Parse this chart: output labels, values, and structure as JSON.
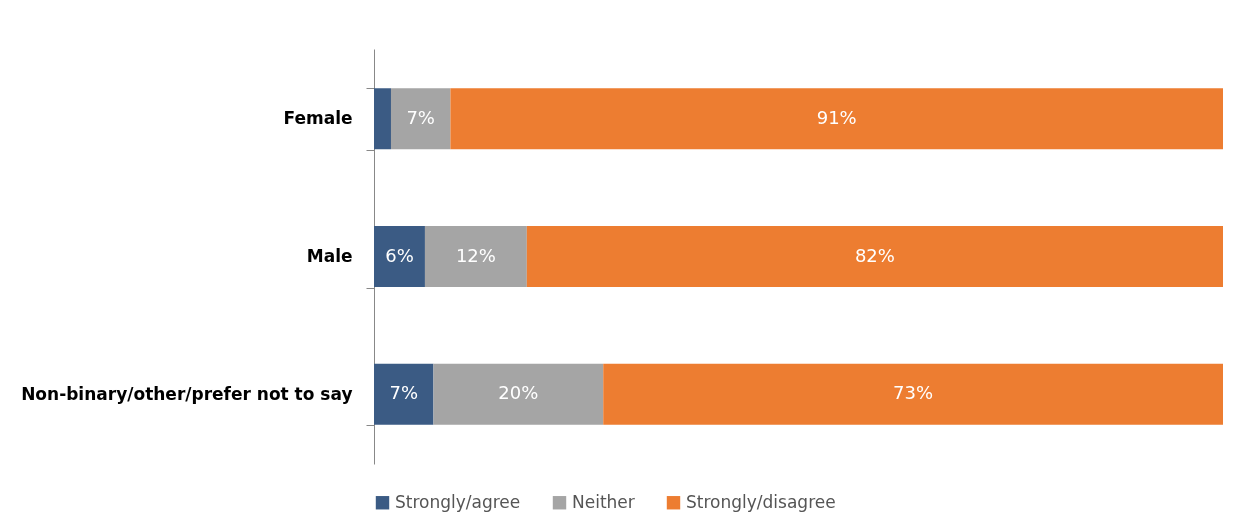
{
  "chart_data": {
    "type": "bar",
    "orientation": "horizontal",
    "stacked": true,
    "categories": [
      "Female",
      "Male",
      "Non-binary/other/prefer not to say"
    ],
    "series": [
      {
        "name": "Strongly/agree",
        "color": "#3b5b84",
        "values": [
          2,
          6,
          7
        ],
        "value_labels": [
          null,
          "6%",
          "7%"
        ]
      },
      {
        "name": "Neither",
        "color": "#a5a5a5",
        "values": [
          7,
          12,
          20
        ],
        "value_labels": [
          "7%",
          "12%",
          "20%"
        ]
      },
      {
        "name": "Strongly/disagree",
        "color": "#ed7d31",
        "values": [
          91,
          82,
          73
        ],
        "value_labels": [
          "91%",
          "82%",
          "73%"
        ]
      }
    ],
    "xlim": [
      0,
      100
    ],
    "tick_labels": "y",
    "grid": false,
    "legend": "bottom"
  }
}
